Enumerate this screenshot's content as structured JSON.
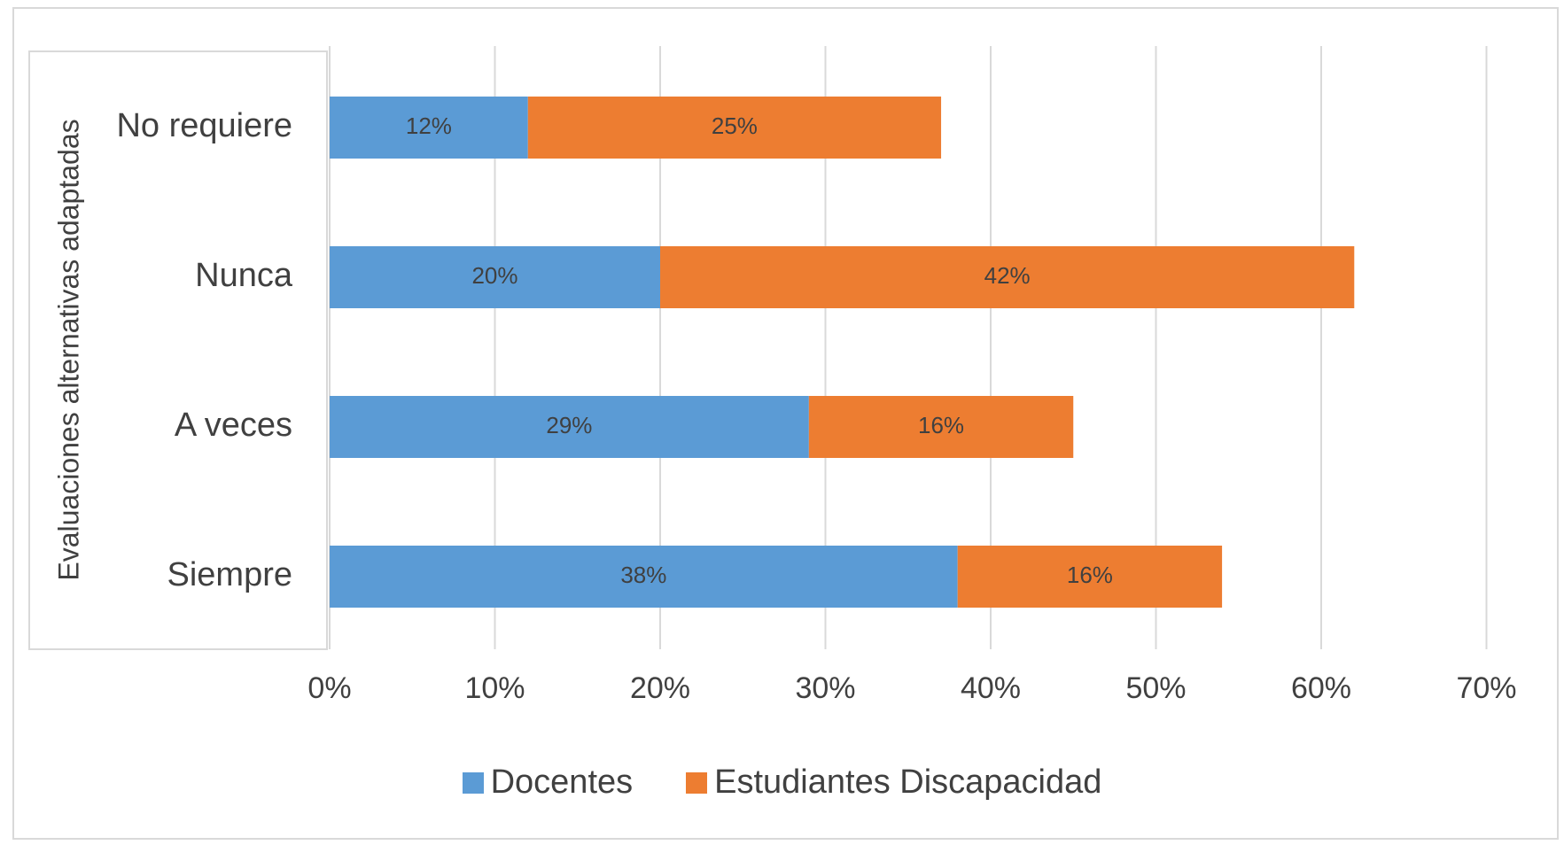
{
  "chart_data": {
    "type": "bar",
    "orientation": "horizontal",
    "stacked": true,
    "title": "",
    "ylabel": "Evaluaciones alternativas adaptadas",
    "categories": [
      "No requiere",
      "Nunca",
      "A veces",
      "Siempre"
    ],
    "series": [
      {
        "name": "Docentes",
        "values": [
          12,
          20,
          29,
          38
        ],
        "labels": [
          "12%",
          "20%",
          "29%",
          "38%"
        ],
        "color": "#5b9bd5"
      },
      {
        "name": "Estudiantes Discapacidad",
        "values": [
          25,
          42,
          16,
          16
        ],
        "labels": [
          "25%",
          "42%",
          "16%",
          "16%"
        ],
        "color": "#ed7d31"
      }
    ],
    "xlim": [
      0,
      70
    ],
    "xticks": [
      "0%",
      "10%",
      "20%",
      "30%",
      "40%",
      "50%",
      "60%",
      "70%"
    ],
    "grid": true,
    "legend_position": "bottom"
  }
}
